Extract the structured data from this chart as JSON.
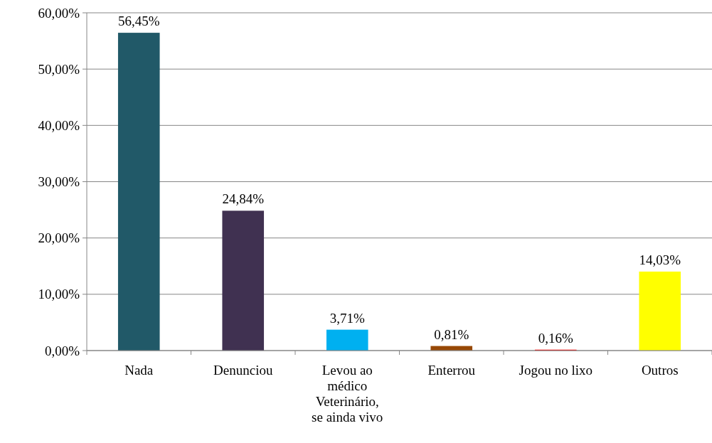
{
  "chart_data": {
    "type": "bar",
    "categories": [
      "Nada",
      "Denunciou",
      "Levou ao médico Veterinário, se ainda vivo",
      "Enterrou",
      "Jogou no lixo",
      "Outros"
    ],
    "values": [
      56.45,
      24.84,
      3.71,
      0.81,
      0.16,
      14.03
    ],
    "colors": [
      "#215968",
      "#403151",
      "#00b0f0",
      "#974806",
      "#ff0000",
      "#ffff00"
    ],
    "value_labels": [
      "56,45%",
      "24,84%",
      "3,71%",
      "0,81%",
      "0,16%",
      "14,03%"
    ],
    "ylim": [
      0,
      60
    ],
    "yticks": [
      {
        "value": 0,
        "label": "0,00%"
      },
      {
        "value": 10,
        "label": "10,00%"
      },
      {
        "value": 20,
        "label": "20,00%"
      },
      {
        "value": 30,
        "label": "30,00%"
      },
      {
        "value": 40,
        "label": "40,00%"
      },
      {
        "value": 50,
        "label": "50,00%"
      },
      {
        "value": 60,
        "label": "60,00%"
      }
    ],
    "grid": "y"
  }
}
